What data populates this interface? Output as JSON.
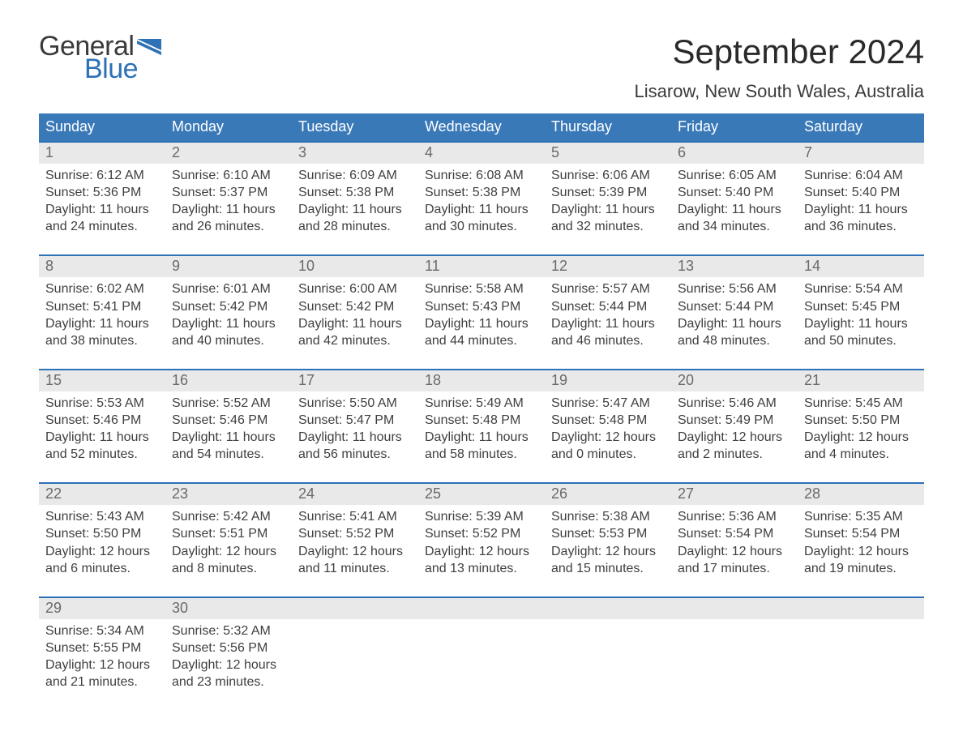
{
  "brand": {
    "text1": "General",
    "text2": "Blue"
  },
  "title": "September 2024",
  "location": "Lisarow, New South Wales, Australia",
  "colors": {
    "brand_blue": "#2d71b6",
    "header_blue": "#3a79b8",
    "light_gray": "#e9e9e9",
    "text_dark": "#3a3a3a",
    "white": "#ffffff"
  },
  "weekdays": [
    "Sunday",
    "Monday",
    "Tuesday",
    "Wednesday",
    "Thursday",
    "Friday",
    "Saturday"
  ],
  "weeks": [
    [
      {
        "n": "1",
        "sunrise": "6:12 AM",
        "sunset": "5:36 PM",
        "dl1": "11 hours",
        "dl2": "and 24 minutes."
      },
      {
        "n": "2",
        "sunrise": "6:10 AM",
        "sunset": "5:37 PM",
        "dl1": "11 hours",
        "dl2": "and 26 minutes."
      },
      {
        "n": "3",
        "sunrise": "6:09 AM",
        "sunset": "5:38 PM",
        "dl1": "11 hours",
        "dl2": "and 28 minutes."
      },
      {
        "n": "4",
        "sunrise": "6:08 AM",
        "sunset": "5:38 PM",
        "dl1": "11 hours",
        "dl2": "and 30 minutes."
      },
      {
        "n": "5",
        "sunrise": "6:06 AM",
        "sunset": "5:39 PM",
        "dl1": "11 hours",
        "dl2": "and 32 minutes."
      },
      {
        "n": "6",
        "sunrise": "6:05 AM",
        "sunset": "5:40 PM",
        "dl1": "11 hours",
        "dl2": "and 34 minutes."
      },
      {
        "n": "7",
        "sunrise": "6:04 AM",
        "sunset": "5:40 PM",
        "dl1": "11 hours",
        "dl2": "and 36 minutes."
      }
    ],
    [
      {
        "n": "8",
        "sunrise": "6:02 AM",
        "sunset": "5:41 PM",
        "dl1": "11 hours",
        "dl2": "and 38 minutes."
      },
      {
        "n": "9",
        "sunrise": "6:01 AM",
        "sunset": "5:42 PM",
        "dl1": "11 hours",
        "dl2": "and 40 minutes."
      },
      {
        "n": "10",
        "sunrise": "6:00 AM",
        "sunset": "5:42 PM",
        "dl1": "11 hours",
        "dl2": "and 42 minutes."
      },
      {
        "n": "11",
        "sunrise": "5:58 AM",
        "sunset": "5:43 PM",
        "dl1": "11 hours",
        "dl2": "and 44 minutes."
      },
      {
        "n": "12",
        "sunrise": "5:57 AM",
        "sunset": "5:44 PM",
        "dl1": "11 hours",
        "dl2": "and 46 minutes."
      },
      {
        "n": "13",
        "sunrise": "5:56 AM",
        "sunset": "5:44 PM",
        "dl1": "11 hours",
        "dl2": "and 48 minutes."
      },
      {
        "n": "14",
        "sunrise": "5:54 AM",
        "sunset": "5:45 PM",
        "dl1": "11 hours",
        "dl2": "and 50 minutes."
      }
    ],
    [
      {
        "n": "15",
        "sunrise": "5:53 AM",
        "sunset": "5:46 PM",
        "dl1": "11 hours",
        "dl2": "and 52 minutes."
      },
      {
        "n": "16",
        "sunrise": "5:52 AM",
        "sunset": "5:46 PM",
        "dl1": "11 hours",
        "dl2": "and 54 minutes."
      },
      {
        "n": "17",
        "sunrise": "5:50 AM",
        "sunset": "5:47 PM",
        "dl1": "11 hours",
        "dl2": "and 56 minutes."
      },
      {
        "n": "18",
        "sunrise": "5:49 AM",
        "sunset": "5:48 PM",
        "dl1": "11 hours",
        "dl2": "and 58 minutes."
      },
      {
        "n": "19",
        "sunrise": "5:47 AM",
        "sunset": "5:48 PM",
        "dl1": "12 hours",
        "dl2": "and 0 minutes."
      },
      {
        "n": "20",
        "sunrise": "5:46 AM",
        "sunset": "5:49 PM",
        "dl1": "12 hours",
        "dl2": "and 2 minutes."
      },
      {
        "n": "21",
        "sunrise": "5:45 AM",
        "sunset": "5:50 PM",
        "dl1": "12 hours",
        "dl2": "and 4 minutes."
      }
    ],
    [
      {
        "n": "22",
        "sunrise": "5:43 AM",
        "sunset": "5:50 PM",
        "dl1": "12 hours",
        "dl2": "and 6 minutes."
      },
      {
        "n": "23",
        "sunrise": "5:42 AM",
        "sunset": "5:51 PM",
        "dl1": "12 hours",
        "dl2": "and 8 minutes."
      },
      {
        "n": "24",
        "sunrise": "5:41 AM",
        "sunset": "5:52 PM",
        "dl1": "12 hours",
        "dl2": "and 11 minutes."
      },
      {
        "n": "25",
        "sunrise": "5:39 AM",
        "sunset": "5:52 PM",
        "dl1": "12 hours",
        "dl2": "and 13 minutes."
      },
      {
        "n": "26",
        "sunrise": "5:38 AM",
        "sunset": "5:53 PM",
        "dl1": "12 hours",
        "dl2": "and 15 minutes."
      },
      {
        "n": "27",
        "sunrise": "5:36 AM",
        "sunset": "5:54 PM",
        "dl1": "12 hours",
        "dl2": "and 17 minutes."
      },
      {
        "n": "28",
        "sunrise": "5:35 AM",
        "sunset": "5:54 PM",
        "dl1": "12 hours",
        "dl2": "and 19 minutes."
      }
    ],
    [
      {
        "n": "29",
        "sunrise": "5:34 AM",
        "sunset": "5:55 PM",
        "dl1": "12 hours",
        "dl2": "and 21 minutes."
      },
      {
        "n": "30",
        "sunrise": "5:32 AM",
        "sunset": "5:56 PM",
        "dl1": "12 hours",
        "dl2": "and 23 minutes."
      },
      null,
      null,
      null,
      null,
      null
    ]
  ],
  "labels": {
    "sunrise_prefix": "Sunrise: ",
    "sunset_prefix": "Sunset: ",
    "daylight_prefix": "Daylight: "
  }
}
